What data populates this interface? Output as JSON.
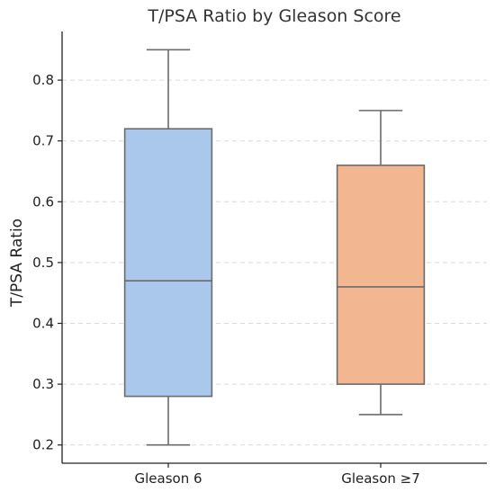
{
  "chart_data": {
    "type": "box",
    "title": "T/PSA Ratio by Gleason Score",
    "xlabel": "",
    "ylabel": "T/PSA Ratio",
    "ylim": [
      0.17,
      0.88
    ],
    "yticks": [
      0.2,
      0.3,
      0.4,
      0.5,
      0.6,
      0.7,
      0.8
    ],
    "grid": true,
    "categories": [
      "Gleason 6",
      "Gleason ≥7"
    ],
    "boxes": [
      {
        "min": 0.2,
        "q1": 0.28,
        "median": 0.47,
        "q3": 0.72,
        "max": 0.85,
        "color": "#a9c8ec"
      },
      {
        "min": 0.25,
        "q1": 0.3,
        "median": 0.46,
        "q3": 0.66,
        "max": 0.75,
        "color": "#f2b690"
      }
    ],
    "line_color": "#6b6b6b"
  }
}
